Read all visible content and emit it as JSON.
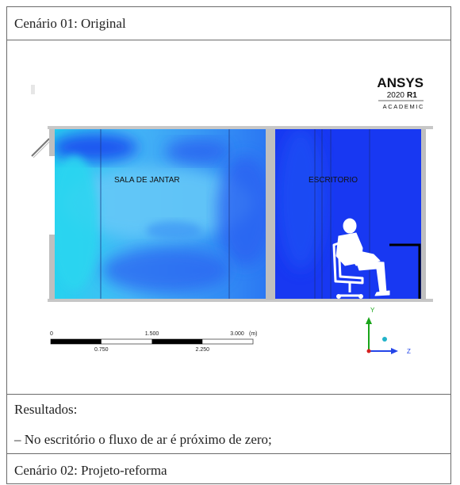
{
  "scenario1": {
    "title": "Cenário 01: Original"
  },
  "figure": {
    "brand": "ANSYS",
    "version_year": "2020",
    "version_release": "R1",
    "edition": "ACADEMIC",
    "room_left_label": "SALA DE JANTAR",
    "room_right_label": "ESCRITORIO",
    "scale": {
      "tick_0": "0",
      "tick_1500": "1.500",
      "tick_3000": "3.000",
      "unit": "(m)",
      "tick_750": "0.750",
      "tick_2250": "2.250"
    },
    "axis_y": "Y",
    "axis_z": "Z",
    "colors": {
      "cyan": "#2ad4f0",
      "light_blue": "#38a8f5",
      "blue": "#1a3df2",
      "wall": "#bfbfbf"
    }
  },
  "results": {
    "heading": "Resultados:",
    "item1": "– No escritório o fluxo de ar é próximo de zero;"
  },
  "scenario2": {
    "title": "Cenário 02: Projeto-reforma"
  }
}
